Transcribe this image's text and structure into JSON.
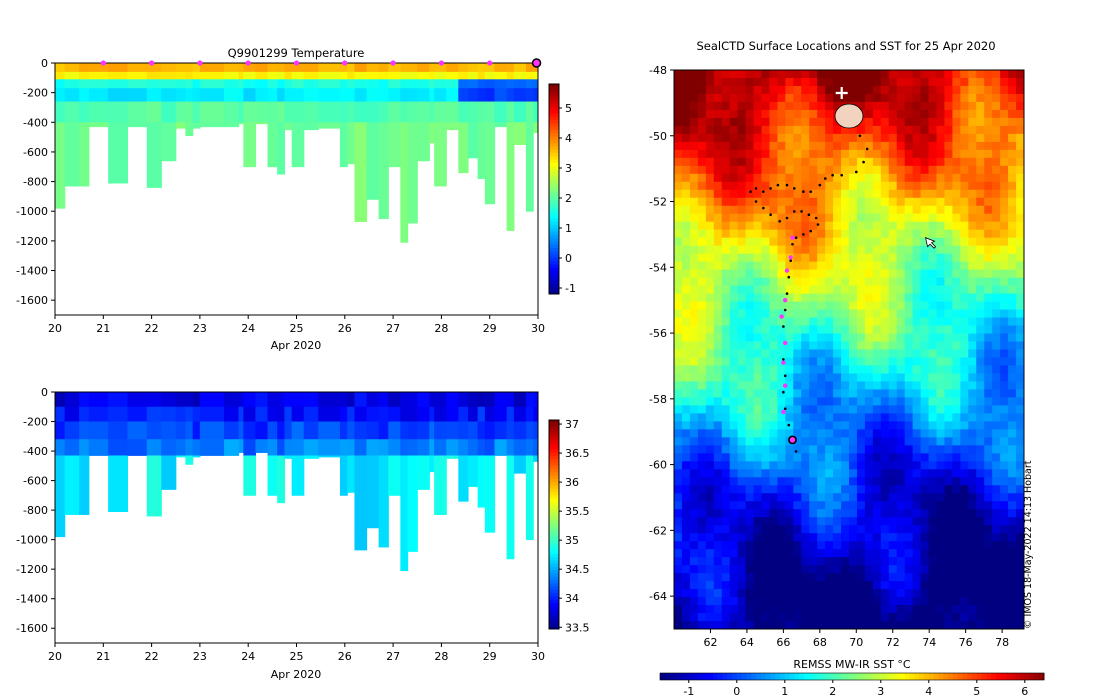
{
  "chart_data": [
    {
      "id": "temperature-section",
      "type": "heatmap",
      "title": "Q9901299  Temperature",
      "xlabel": "Apr 2020",
      "ylabel": "",
      "x_range": [
        20,
        30
      ],
      "y_range": [
        -1700,
        0
      ],
      "x_ticks": [
        "20",
        "21",
        "22",
        "23",
        "24",
        "25",
        "26",
        "27",
        "28",
        "29",
        "30"
      ],
      "y_ticks": [
        "0",
        "-200",
        "-400",
        "-600",
        "-800",
        "-1000",
        "-1200",
        "-1400",
        "-1600"
      ],
      "colorbar": {
        "range": [
          -1.2,
          5.8
        ],
        "ticks": [
          "-1",
          "0",
          "1",
          "2",
          "3",
          "4",
          "5"
        ]
      },
      "surface_markers_days": [
        21,
        22,
        23,
        24,
        25,
        26,
        27,
        28,
        29
      ],
      "latest_marker_day": 29.97,
      "profiles": [
        {
          "x": 20.0,
          "maxdepth": 980
        },
        {
          "x": 20.2,
          "maxdepth": 830
        },
        {
          "x": 20.5,
          "maxdepth": 830
        },
        {
          "x": 20.7,
          "maxdepth": 430
        },
        {
          "x": 21.1,
          "maxdepth": 810
        },
        {
          "x": 21.5,
          "maxdepth": 430
        },
        {
          "x": 21.9,
          "maxdepth": 840
        },
        {
          "x": 22.2,
          "maxdepth": 660
        },
        {
          "x": 22.5,
          "maxdepth": 440
        },
        {
          "x": 22.7,
          "maxdepth": 490
        },
        {
          "x": 22.85,
          "maxdepth": 440
        },
        {
          "x": 23.0,
          "maxdepth": 430
        },
        {
          "x": 23.5,
          "maxdepth": 430
        },
        {
          "x": 23.8,
          "maxdepth": 410
        },
        {
          "x": 23.9,
          "maxdepth": 700
        },
        {
          "x": 24.15,
          "maxdepth": 410
        },
        {
          "x": 24.4,
          "maxdepth": 700
        },
        {
          "x": 24.6,
          "maxdepth": 750
        },
        {
          "x": 24.75,
          "maxdepth": 450
        },
        {
          "x": 24.9,
          "maxdepth": 700
        },
        {
          "x": 25.15,
          "maxdepth": 450
        },
        {
          "x": 25.45,
          "maxdepth": 440
        },
        {
          "x": 25.9,
          "maxdepth": 700
        },
        {
          "x": 26.05,
          "maxdepth": 680
        },
        {
          "x": 26.2,
          "maxdepth": 1070
        },
        {
          "x": 26.45,
          "maxdepth": 920
        },
        {
          "x": 26.7,
          "maxdepth": 1050
        },
        {
          "x": 26.9,
          "maxdepth": 700
        },
        {
          "x": 27.15,
          "maxdepth": 1210
        },
        {
          "x": 27.3,
          "maxdepth": 1080
        },
        {
          "x": 27.5,
          "maxdepth": 660
        },
        {
          "x": 27.75,
          "maxdepth": 540
        },
        {
          "x": 27.85,
          "maxdepth": 830
        },
        {
          "x": 28.1,
          "maxdepth": 450
        },
        {
          "x": 28.35,
          "maxdepth": 740
        },
        {
          "x": 28.55,
          "maxdepth": 640
        },
        {
          "x": 28.75,
          "maxdepth": 780
        },
        {
          "x": 28.9,
          "maxdepth": 950
        },
        {
          "x": 29.1,
          "maxdepth": 430
        },
        {
          "x": 29.35,
          "maxdepth": 1130
        },
        {
          "x": 29.5,
          "maxdepth": 550
        },
        {
          "x": 29.75,
          "maxdepth": 1000
        },
        {
          "x": 29.9,
          "maxdepth": 470
        }
      ],
      "layers": [
        {
          "top": 0,
          "bottom": 60,
          "value": 3.7
        },
        {
          "top": 60,
          "bottom": 110,
          "value": 3.2
        },
        {
          "top": 110,
          "bottom": 170,
          "value": 1.6
        },
        {
          "top": 170,
          "bottom": 260,
          "value": 1.3
        },
        {
          "top": 260,
          "bottom": 400,
          "value": 2.0
        },
        {
          "top": 400,
          "bottom": 1250,
          "value": 2.2
        }
      ]
    },
    {
      "id": "salinity-section",
      "type": "heatmap",
      "title": "",
      "xlabel": "Apr 2020",
      "ylabel": "",
      "x_range": [
        20,
        30
      ],
      "y_range": [
        -1700,
        0
      ],
      "x_ticks": [
        "20",
        "21",
        "22",
        "23",
        "24",
        "25",
        "26",
        "27",
        "28",
        "29",
        "30"
      ],
      "y_ticks": [
        "0",
        "-200",
        "-400",
        "-600",
        "-800",
        "-1000",
        "-1200",
        "-1400",
        "-1600"
      ],
      "colorbar": {
        "range": [
          33.47,
          37.07
        ],
        "ticks": [
          "33.5",
          "34",
          "34.5",
          "35",
          "35.5",
          "36",
          "36.5",
          "37"
        ]
      },
      "layers": [
        {
          "top": 0,
          "bottom": 100,
          "value": 33.85
        },
        {
          "top": 100,
          "bottom": 200,
          "value": 33.98
        },
        {
          "top": 200,
          "bottom": 320,
          "value": 34.15
        },
        {
          "top": 320,
          "bottom": 430,
          "value": 34.35
        },
        {
          "top": 430,
          "bottom": 1250,
          "value": 34.78
        }
      ]
    },
    {
      "id": "sst-map",
      "type": "heatmap",
      "title": "SealCTD Surface Locations and SST for 25 Apr 2020",
      "xlabel": "",
      "ylabel": "",
      "x_range": [
        60,
        79.2
      ],
      "y_range": [
        -65,
        -48
      ],
      "x_ticks": [
        "62",
        "64",
        "66",
        "68",
        "70",
        "72",
        "74",
        "76",
        "78"
      ],
      "y_ticks": [
        "-48",
        "-50",
        "-52",
        "-54",
        "-56",
        "-58",
        "-60",
        "-62",
        "-64"
      ],
      "colorbar": {
        "label": "REMSS MW-IR SST °C",
        "range": [
          -1.6,
          6.4
        ],
        "ticks": [
          "-1",
          "0",
          "1",
          "2",
          "3",
          "4",
          "5",
          "6"
        ]
      },
      "track_points": [
        [
          70.2,
          -50.0
        ],
        [
          70.6,
          -50.4
        ],
        [
          70.4,
          -50.8
        ],
        [
          70.0,
          -51.1
        ],
        [
          69.2,
          -51.2
        ],
        [
          68.7,
          -51.2
        ],
        [
          68.3,
          -51.3
        ],
        [
          68.0,
          -51.5
        ],
        [
          67.5,
          -51.7
        ],
        [
          67.1,
          -51.7
        ],
        [
          66.6,
          -51.6
        ],
        [
          66.2,
          -51.5
        ],
        [
          65.7,
          -51.5
        ],
        [
          65.3,
          -51.6
        ],
        [
          64.9,
          -51.7
        ],
        [
          64.5,
          -51.6
        ],
        [
          64.2,
          -51.7
        ],
        [
          64.5,
          -52.0
        ],
        [
          64.9,
          -52.2
        ],
        [
          65.3,
          -52.4
        ],
        [
          65.8,
          -52.6
        ],
        [
          66.2,
          -52.5
        ],
        [
          66.6,
          -52.3
        ],
        [
          67.0,
          -52.3
        ],
        [
          67.4,
          -52.4
        ],
        [
          67.8,
          -52.5
        ],
        [
          67.9,
          -52.7
        ],
        [
          67.5,
          -52.9
        ],
        [
          67.1,
          -53.0
        ],
        [
          66.7,
          -53.1
        ],
        [
          66.5,
          -53.3
        ],
        [
          66.4,
          -53.8
        ],
        [
          66.3,
          -54.3
        ],
        [
          66.2,
          -54.8
        ],
        [
          66.1,
          -55.3
        ],
        [
          66.0,
          -55.8
        ],
        [
          66.1,
          -56.3
        ],
        [
          66.0,
          -56.8
        ],
        [
          66.1,
          -57.3
        ],
        [
          66.0,
          -57.8
        ],
        [
          66.1,
          -58.3
        ],
        [
          66.3,
          -58.8
        ],
        [
          66.5,
          -59.2
        ],
        [
          66.7,
          -59.6
        ]
      ],
      "surface_positions": [
        [
          66.5,
          -53.1
        ],
        [
          66.4,
          -53.7
        ],
        [
          66.2,
          -54.1
        ],
        [
          66.1,
          -55.0
        ],
        [
          65.9,
          -55.5
        ],
        [
          66.1,
          -56.3
        ],
        [
          66.0,
          -56.9
        ],
        [
          66.1,
          -57.6
        ],
        [
          66.0,
          -58.4
        ]
      ],
      "latest_position": [
        66.5,
        -59.25
      ],
      "deploy_marker": [
        69.2,
        -48.7
      ],
      "cursor_position": [
        73.8,
        -53.1
      ]
    }
  ],
  "footer": {
    "credit": "© IMOS 18-May-2022 14:13 Hobart"
  }
}
